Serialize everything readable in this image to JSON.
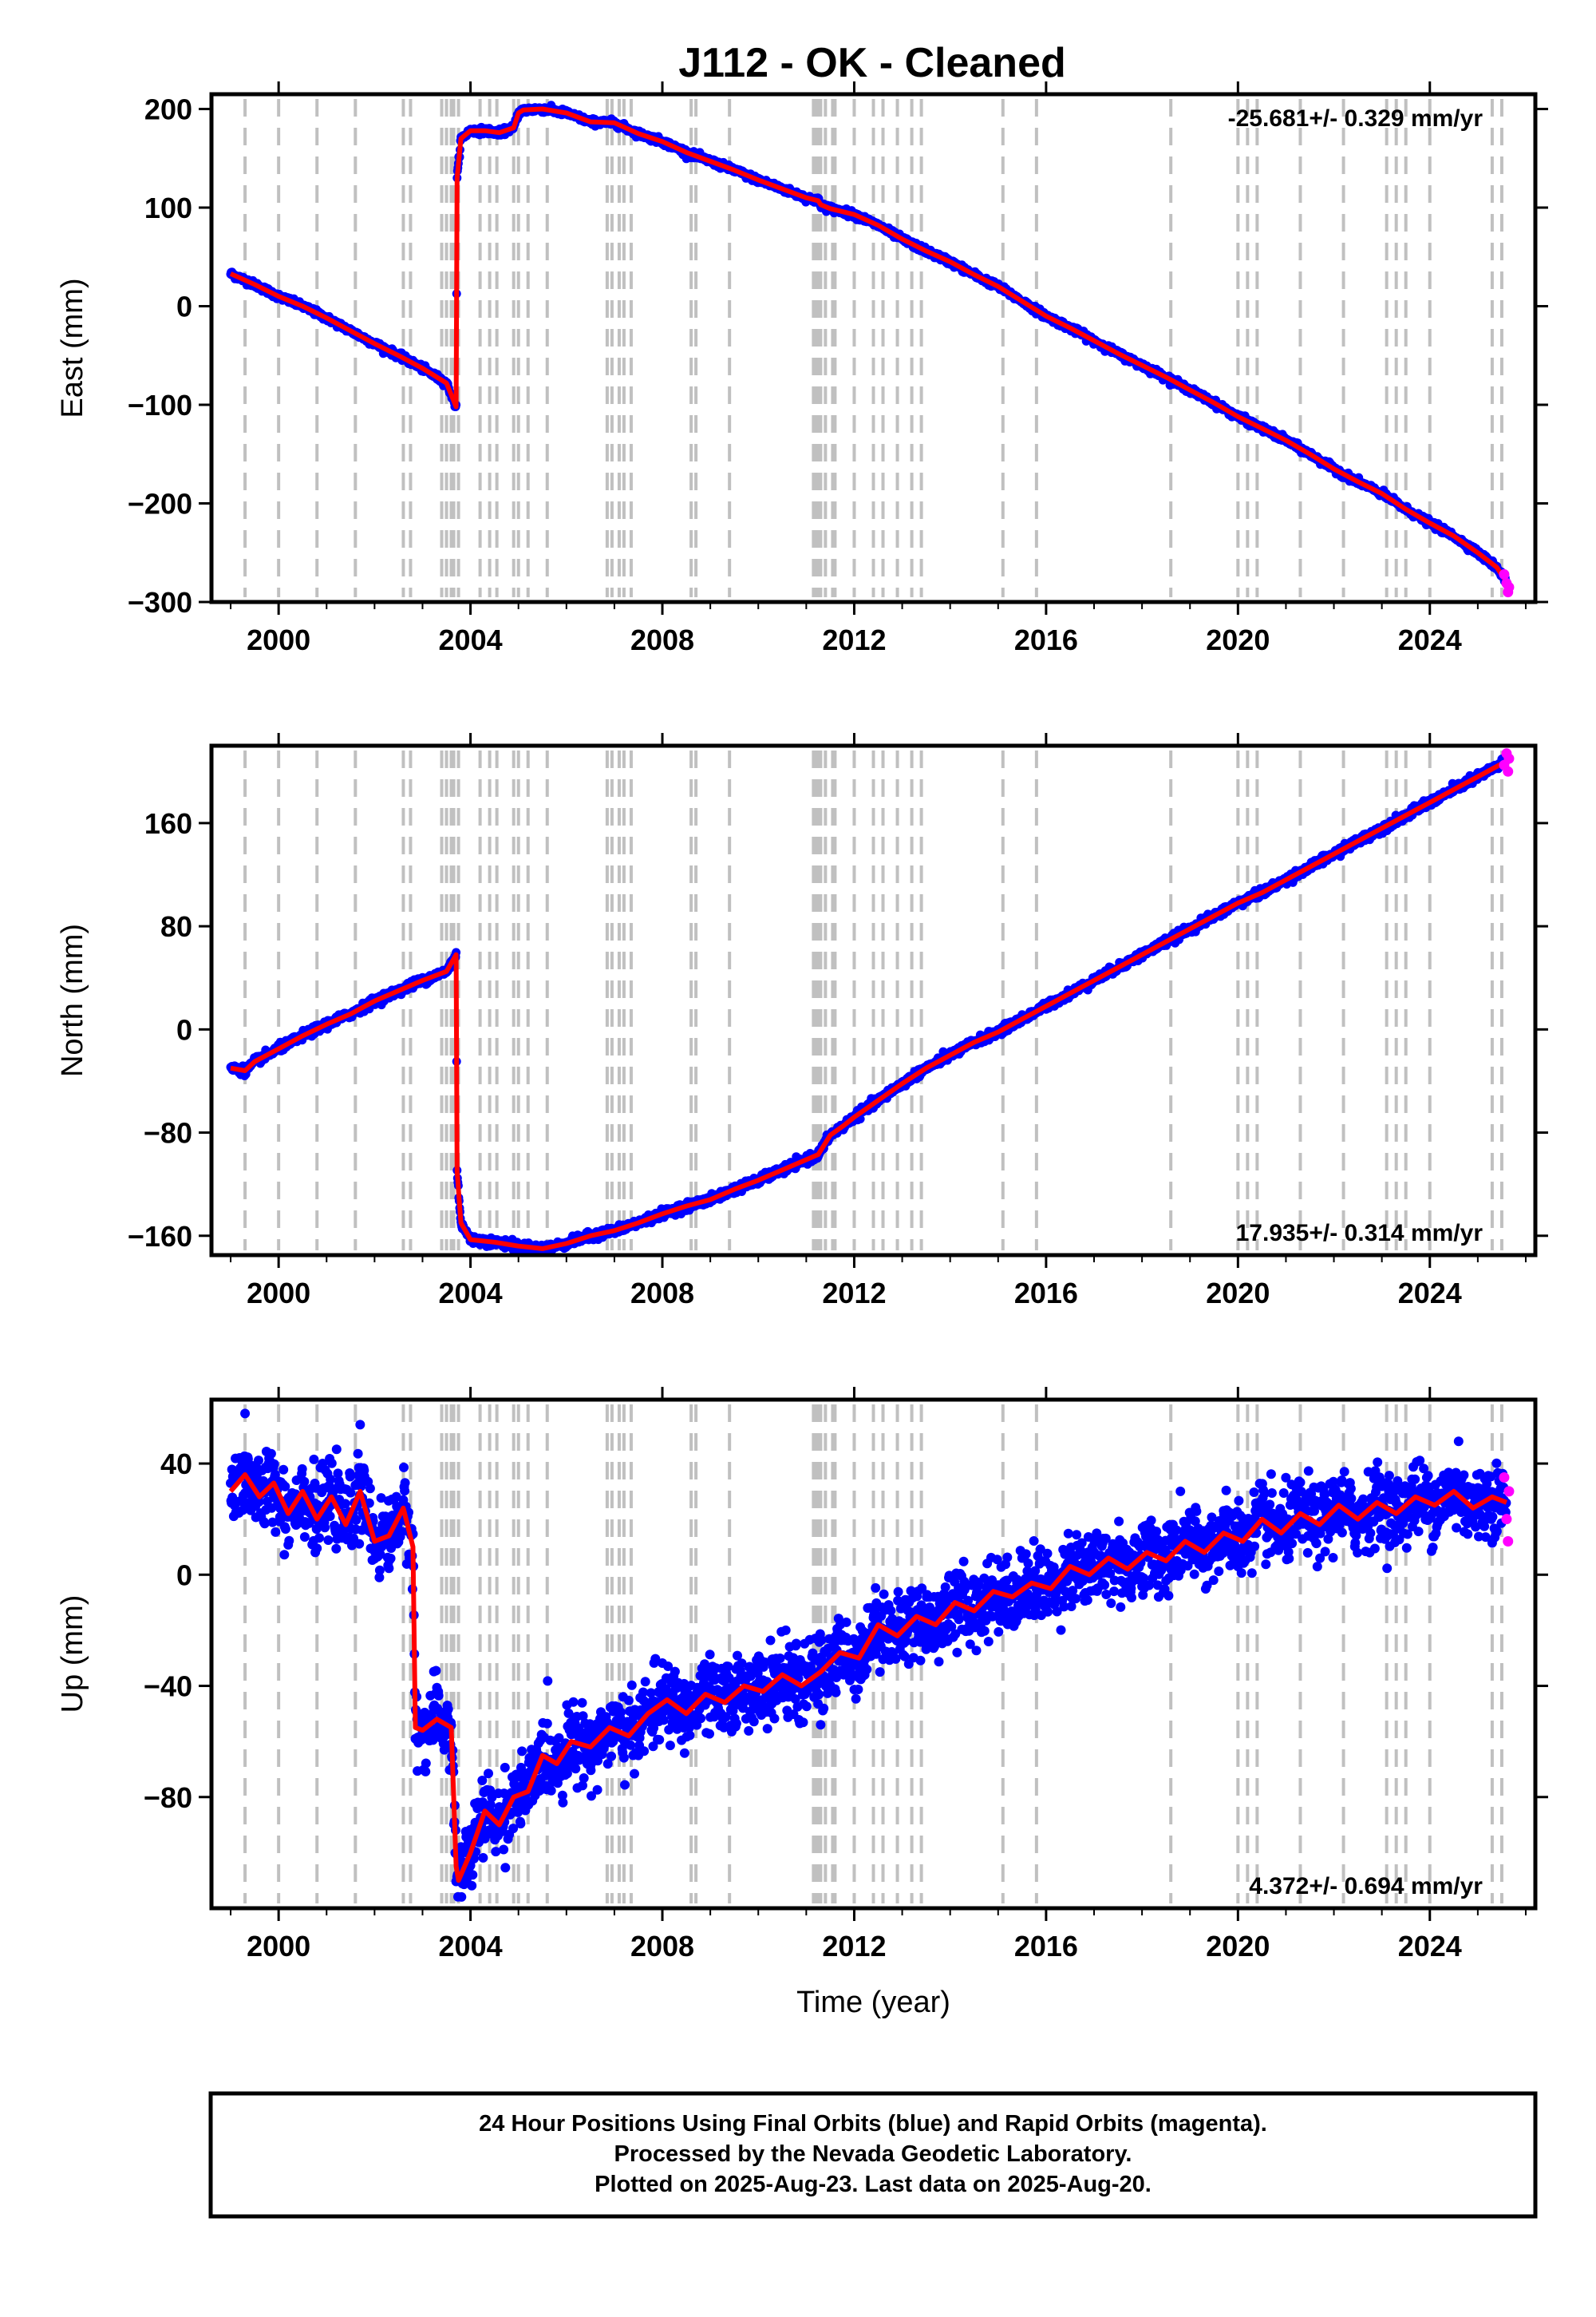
{
  "title": "J112  - OK - Cleaned",
  "colors": {
    "final_orbits": "#0000ff",
    "rapid_orbits": "#ff00ff",
    "fit": "#ff0000",
    "events": "#c0c0c0"
  },
  "chart_data": [
    {
      "type": "scatter",
      "id": "east",
      "ylabel": "East (mm)",
      "rate": "-25.681+/- 0.329 mm/yr",
      "rate_position": "top-right",
      "xlim": [
        1998.6,
        2026.2
      ],
      "ylim": [
        -300,
        215
      ],
      "xticks": [
        2000,
        2004,
        2008,
        2012,
        2016,
        2020,
        2024
      ],
      "yticks": [
        -300,
        -200,
        -100,
        0,
        100,
        200
      ],
      "ytick_labels": [
        "−300",
        "−200",
        "−100",
        "0",
        "100",
        "200"
      ],
      "series": [
        {
          "style": "final orbits (blue) with fit (red)",
          "x": [
            1999.0,
            1999.5,
            2000.0,
            2000.5,
            2001.0,
            2001.5,
            2002.0,
            2002.5,
            2003.0,
            2003.5,
            2003.7,
            2003.72,
            2003.8,
            2004.0,
            2004.3,
            2004.6,
            2004.9,
            2005.0,
            2005.1,
            2005.5,
            2006.0,
            2006.5,
            2007.0,
            2007.5,
            2008.0,
            2008.5,
            2009.0,
            2009.5,
            2010.0,
            2010.5,
            2011.0,
            2011.25,
            2011.3,
            2011.5,
            2012.0,
            2012.5,
            2013.0,
            2013.5,
            2014.0,
            2014.5,
            2015.0,
            2015.5,
            2016.0,
            2016.5,
            2017.0,
            2017.5,
            2018.0,
            2018.5,
            2019.0,
            2019.5,
            2020.0,
            2020.5,
            2021.0,
            2021.5,
            2022.0,
            2022.5,
            2023.0,
            2023.5,
            2024.0,
            2024.5,
            2025.0,
            2025.4,
            2025.6
          ],
          "y": [
            33,
            22,
            10,
            0,
            -12,
            -25,
            -38,
            -50,
            -63,
            -78,
            -102,
            130,
            170,
            178,
            178,
            176,
            181,
            196,
            199,
            200,
            196,
            187,
            186,
            175,
            167,
            156,
            147,
            138,
            128,
            119,
            110,
            107,
            103,
            99,
            93,
            82,
            68,
            56,
            45,
            32,
            20,
            5,
            -10,
            -22,
            -35,
            -48,
            -60,
            -72,
            -85,
            -98,
            -112,
            -124,
            -136,
            -150,
            -165,
            -178,
            -190,
            -206,
            -220,
            -233,
            -250,
            -265,
            -280
          ]
        }
      ],
      "rapid_orbits": {
        "x": [
          2025.55,
          2025.6,
          2025.63,
          2025.65
        ],
        "y": [
          -272,
          -281,
          -290,
          -285
        ]
      }
    },
    {
      "type": "scatter",
      "id": "north",
      "ylabel": "North (mm)",
      "rate": "17.935+/- 0.314 mm/yr",
      "rate_position": "bottom-right",
      "xlim": [
        1998.6,
        2026.2
      ],
      "ylim": [
        -175,
        220
      ],
      "xticks": [
        2000,
        2004,
        2008,
        2012,
        2016,
        2020,
        2024
      ],
      "yticks": [
        -160,
        -80,
        0,
        80,
        160
      ],
      "ytick_labels": [
        "−160",
        "−80",
        "0",
        "80",
        "160"
      ],
      "series": [
        {
          "style": "final orbits (blue) with fit (red)",
          "x": [
            1999.0,
            1999.3,
            1999.5,
            2000.0,
            2000.5,
            2001.0,
            2001.5,
            2002.0,
            2002.5,
            2003.0,
            2003.5,
            2003.7,
            2003.72,
            2003.8,
            2004.0,
            2004.5,
            2005.0,
            2005.5,
            2006.0,
            2006.5,
            2007.0,
            2007.5,
            2008.0,
            2008.5,
            2009.0,
            2009.5,
            2010.0,
            2010.5,
            2011.0,
            2011.25,
            2011.5,
            2011.8,
            2012.0,
            2012.5,
            2013.0,
            2013.5,
            2014.0,
            2014.5,
            2015.0,
            2015.5,
            2016.0,
            2016.5,
            2017.0,
            2017.5,
            2018.0,
            2018.5,
            2019.0,
            2019.5,
            2020.0,
            2020.5,
            2021.0,
            2021.5,
            2022.0,
            2022.5,
            2023.0,
            2023.5,
            2024.0,
            2024.5,
            2025.0,
            2025.4,
            2025.6
          ],
          "y": [
            -30,
            -32,
            -25,
            -15,
            -5,
            4,
            12,
            22,
            30,
            38,
            45,
            58,
            -110,
            -150,
            -163,
            -165,
            -168,
            -170,
            -166,
            -160,
            -156,
            -150,
            -143,
            -137,
            -132,
            -124,
            -117,
            -109,
            -101,
            -97,
            -82,
            -74,
            -68,
            -55,
            -42,
            -30,
            -20,
            -10,
            -2,
            8,
            18,
            28,
            38,
            48,
            58,
            68,
            78,
            88,
            98,
            106,
            116,
            126,
            136,
            146,
            156,
            166,
            176,
            186,
            196,
            204,
            208
          ]
        }
      ],
      "rapid_orbits": {
        "x": [
          2025.55,
          2025.6,
          2025.63,
          2025.65
        ],
        "y": [
          205,
          214,
          200,
          210
        ]
      }
    },
    {
      "type": "scatter",
      "id": "up",
      "ylabel": "Up (mm)",
      "xlabel": "Time (year)",
      "rate": "4.372+/- 0.694 mm/yr",
      "rate_position": "bottom-right",
      "xlim": [
        1998.6,
        2026.2
      ],
      "ylim": [
        -120,
        63
      ],
      "xticks": [
        2000,
        2004,
        2008,
        2012,
        2016,
        2020,
        2024
      ],
      "yticks": [
        -80,
        -40,
        0,
        40
      ],
      "ytick_labels": [
        "−80",
        "−40",
        "0",
        "40"
      ],
      "series": [
        {
          "style": "final orbits (blue) with fit (red)",
          "x": [
            1999.0,
            1999.3,
            1999.6,
            1999.9,
            2000.2,
            2000.5,
            2000.8,
            2001.1,
            2001.4,
            2001.7,
            2002.0,
            2002.3,
            2002.6,
            2002.8,
            2002.85,
            2003.0,
            2003.3,
            2003.6,
            2003.7,
            2003.75,
            2004.0,
            2004.3,
            2004.6,
            2004.9,
            2005.2,
            2005.5,
            2005.8,
            2006.1,
            2006.5,
            2006.9,
            2007.3,
            2007.7,
            2008.1,
            2008.5,
            2008.9,
            2009.3,
            2009.7,
            2010.1,
            2010.5,
            2010.9,
            2011.3,
            2011.7,
            2012.1,
            2012.5,
            2012.9,
            2013.3,
            2013.7,
            2014.1,
            2014.5,
            2014.9,
            2015.3,
            2015.7,
            2016.1,
            2016.5,
            2016.9,
            2017.3,
            2017.7,
            2018.1,
            2018.5,
            2018.9,
            2019.3,
            2019.7,
            2020.1,
            2020.5,
            2020.9,
            2021.3,
            2021.7,
            2022.1,
            2022.5,
            2022.9,
            2023.3,
            2023.7,
            2024.1,
            2024.5,
            2024.9,
            2025.3,
            2025.6
          ],
          "y": [
            30,
            36,
            28,
            33,
            22,
            30,
            20,
            28,
            18,
            30,
            12,
            14,
            24,
            10,
            -55,
            -56,
            -52,
            -55,
            -105,
            -110,
            -100,
            -85,
            -90,
            -80,
            -78,
            -65,
            -68,
            -60,
            -62,
            -55,
            -58,
            -50,
            -45,
            -50,
            -43,
            -46,
            -40,
            -42,
            -36,
            -40,
            -35,
            -28,
            -30,
            -18,
            -22,
            -15,
            -18,
            -10,
            -13,
            -6,
            -8,
            -3,
            -5,
            3,
            0,
            6,
            2,
            8,
            5,
            12,
            8,
            15,
            12,
            20,
            15,
            22,
            18,
            25,
            20,
            26,
            22,
            28,
            25,
            30,
            24,
            28,
            26
          ]
        }
      ],
      "rapid_orbits": {
        "x": [
          2025.55,
          2025.6,
          2025.63,
          2025.65
        ],
        "y": [
          35,
          20,
          12,
          30
        ]
      }
    }
  ],
  "events": [
    1999.3,
    2000.0,
    2000.8,
    2001.6,
    2002.6,
    2002.75,
    2003.4,
    2003.5,
    2003.6,
    2003.65,
    2003.75,
    2004.2,
    2004.4,
    2004.55,
    2004.9,
    2005.0,
    2005.2,
    2005.6,
    2006.85,
    2006.95,
    2007.1,
    2007.2,
    2007.35,
    2008.6,
    2008.7,
    2009.4,
    2011.15,
    2011.2,
    2011.25,
    2011.3,
    2011.4,
    2011.55,
    2011.6,
    2012.0,
    2012.4,
    2012.6,
    2012.9,
    2013.2,
    2013.4,
    2015.1,
    2015.8,
    2018.6,
    2020.0,
    2020.2,
    2020.4,
    2021.3,
    2022.2,
    2023.1,
    2023.3,
    2023.5,
    2024.0,
    2025.3,
    2025.5
  ],
  "footer": {
    "line1": "24 Hour Positions Using Final Orbits (blue) and Rapid Orbits (magenta).",
    "line2": "Processed by the Nevada Geodetic Laboratory.",
    "line3": "Plotted on 2025-Aug-23. Last data on 2025-Aug-20."
  }
}
